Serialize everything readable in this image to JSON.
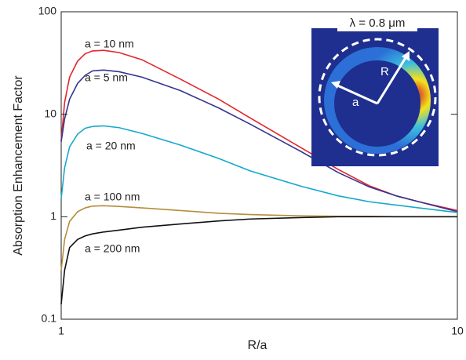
{
  "chart_data": {
    "type": "line",
    "xlabel": "R/a",
    "ylabel": "Absorption Enhancement Factor",
    "xscale": "log",
    "yscale": "log",
    "xlim": [
      1,
      10
    ],
    "ylim": [
      0.1,
      100
    ],
    "xticks": [
      1,
      10
    ],
    "yticks": [
      0.1,
      1,
      10,
      100
    ],
    "x": [
      1,
      1.02,
      1.05,
      1.1,
      1.15,
      1.2,
      1.28,
      1.4,
      1.6,
      2,
      2.5,
      3,
      4,
      5,
      6,
      7,
      8,
      10
    ],
    "series": [
      {
        "name": "a = 10 nm",
        "color": "#e3262b",
        "values": [
          5.5,
          13,
          23,
          33,
          39,
          41.5,
          42,
          40,
          34,
          22,
          14,
          9.2,
          4.8,
          2.9,
          2.0,
          1.6,
          1.4,
          1.15
        ]
      },
      {
        "name": "a = 5 nm",
        "color": "#35348f",
        "values": [
          5.4,
          9,
          14,
          20,
          24,
          26.5,
          27,
          26,
          23,
          17,
          11.5,
          8,
          4.4,
          2.7,
          1.95,
          1.6,
          1.4,
          1.12
        ]
      },
      {
        "name": "a = 20 nm",
        "color": "#16a8cc",
        "values": [
          1.5,
          3,
          4.8,
          6.4,
          7.3,
          7.6,
          7.7,
          7.4,
          6.5,
          5,
          3.7,
          2.8,
          2.0,
          1.6,
          1.4,
          1.3,
          1.22,
          1.1
        ]
      },
      {
        "name": "a = 100 nm",
        "color": "#b58d3b",
        "values": [
          0.3,
          0.6,
          0.9,
          1.12,
          1.22,
          1.27,
          1.28,
          1.26,
          1.22,
          1.15,
          1.08,
          1.05,
          1.02,
          1.01,
          1.01,
          1.0,
          1.0,
          1.0
        ]
      },
      {
        "name": "a = 200 nm",
        "color": "#111111",
        "values": [
          0.14,
          0.3,
          0.5,
          0.6,
          0.65,
          0.68,
          0.71,
          0.74,
          0.79,
          0.85,
          0.91,
          0.95,
          0.98,
          1.0,
          1.0,
          1.0,
          1.0,
          1.0
        ]
      }
    ],
    "inset": {
      "title": "λ = 0.8 μm",
      "inner_label": "a",
      "outer_label": "R"
    }
  }
}
